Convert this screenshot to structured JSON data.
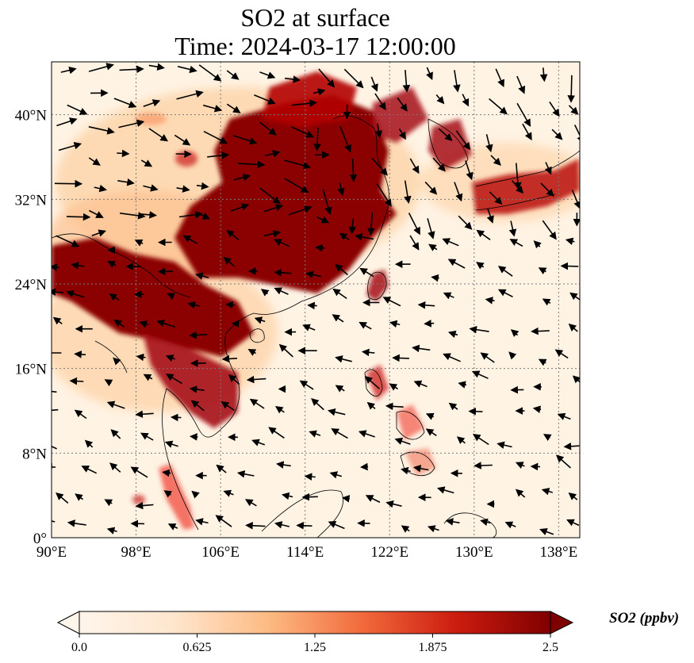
{
  "title": {
    "line1": "SO2 at surface",
    "line2": "Time: 2024-03-17 12:00:00"
  },
  "map": {
    "lon_range": [
      90,
      140
    ],
    "lat_range": [
      0,
      45
    ],
    "lon_ticks": [
      "90°E",
      "98°E",
      "106°E",
      "114°E",
      "122°E",
      "130°E",
      "138°E"
    ],
    "lat_ticks": [
      "0°",
      "8°N",
      "16°N",
      "24°N",
      "32°N",
      "40°N"
    ],
    "gridlines": true,
    "colors": {
      "low": "#fff5eb",
      "mid": "#fd8d3c",
      "high": "#7f0000"
    }
  },
  "colorbar": {
    "label": "SO2 (ppbv)",
    "ticks": [
      "0.0",
      "0.625",
      "1.25",
      "1.875",
      "2.5"
    ],
    "range": [
      0,
      2.5
    ],
    "extend": "both",
    "colormap": "OrRd"
  }
}
